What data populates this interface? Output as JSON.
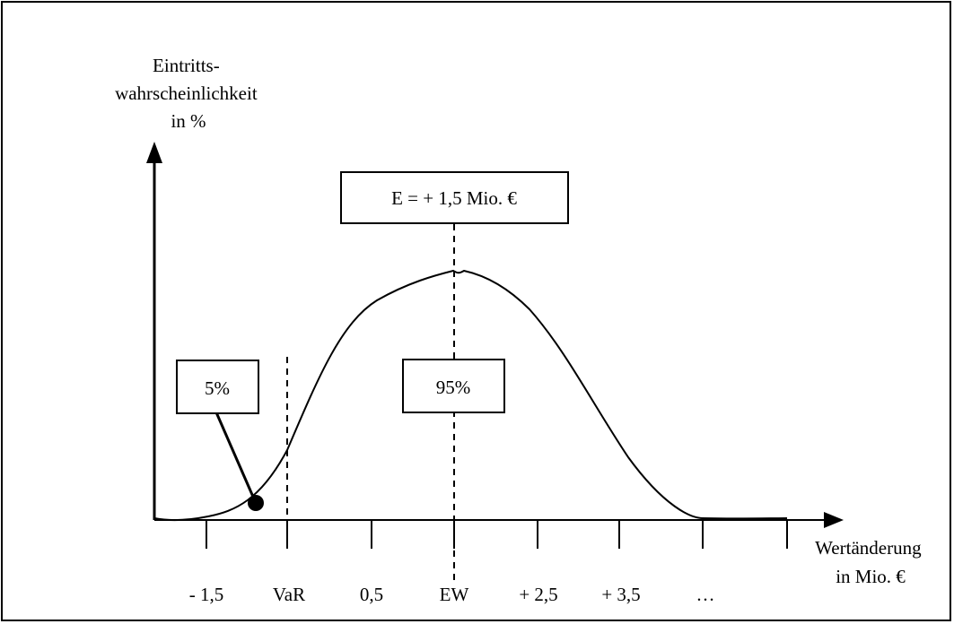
{
  "y_axis_label": [
    "Eintritts-",
    "wahrscheinlichkeit",
    "in %"
  ],
  "x_axis_label": [
    "Wertänderung",
    "in Mio. €"
  ],
  "tick_labels": [
    "- 1,5",
    "VaR",
    "0,5",
    "EW",
    "+ 2,5",
    "+ 3,5",
    "…"
  ],
  "expected_value_box": "E = + 1,5 Mio. €",
  "tail_box": "5%",
  "center_box": "95%",
  "colors": {
    "stroke": "#000000",
    "background": "#ffffff"
  }
}
